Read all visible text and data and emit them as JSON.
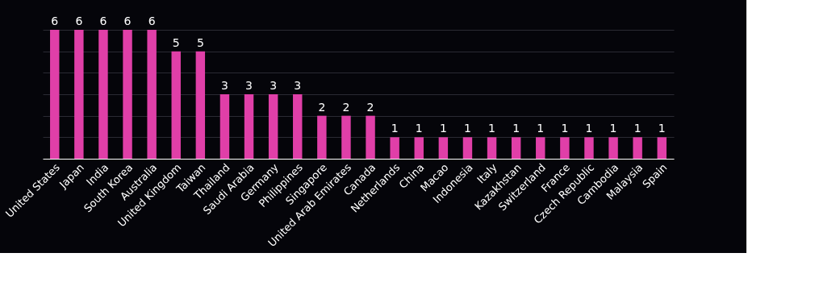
{
  "chart_data": {
    "type": "bar",
    "categories": [
      "United States",
      "Japan",
      "India",
      "South Korea",
      "Australia",
      "United Kingdom",
      "Taiwan",
      "Thailand",
      "Saudi Arabia",
      "Germany",
      "Philippines",
      "Singapore",
      "United Arab Emirates",
      "Canada",
      "Netherlands",
      "China",
      "Macao",
      "Indonesia",
      "Italy",
      "Kazakhstan",
      "Switzerland",
      "France",
      "Czech Republic",
      "Cambodia",
      "Malaysia",
      "Spain"
    ],
    "series": [
      {
        "color": "#e03fa8",
        "values": [
          6,
          6,
          6,
          6,
          6,
          5,
          5,
          3,
          3,
          3,
          3,
          2,
          2,
          2,
          1,
          1,
          1,
          1,
          1,
          1,
          1,
          1,
          1,
          1,
          1,
          1
        ]
      }
    ],
    "grid": "y",
    "tick_labels": "x",
    "data_labels": true
  }
}
